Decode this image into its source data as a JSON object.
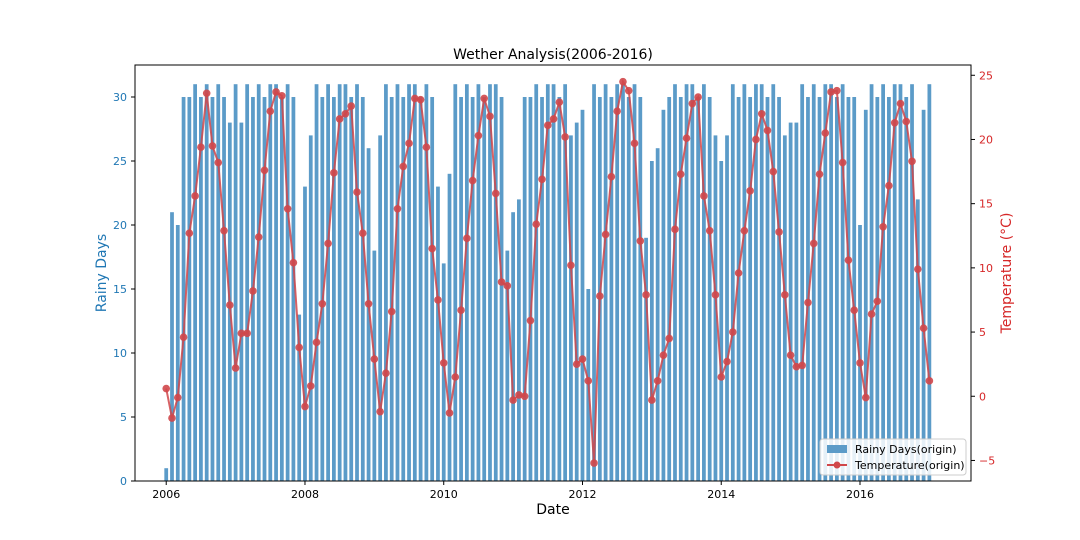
{
  "chart_data": {
    "type": "bar+line",
    "title": "Wether Analysis(2006-2016)",
    "xlabel": "Date",
    "ylabel_left": "Rainy Days",
    "ylabel_right": "Temperature (°C)",
    "x_ticks": [
      "2006",
      "2008",
      "2010",
      "2012",
      "2014",
      "2016"
    ],
    "y_left_ticks": [
      0,
      5,
      10,
      15,
      20,
      25,
      30
    ],
    "y_right_ticks": [
      -5,
      0,
      5,
      10,
      15,
      20,
      25
    ],
    "x_range_years": [
      2005.55,
      2017.6
    ],
    "y_left_range": [
      0,
      32.5
    ],
    "y_right_range": [
      -6.6,
      25.8
    ],
    "grid": false,
    "legend_position": "bottom-right",
    "colors": {
      "bars": "#5b9bc8",
      "line": "#d0474a",
      "left_axis_text": "#1f77b4",
      "right_axis_text": "#d62728"
    },
    "x_start": "2006-01",
    "series": [
      {
        "name": "Rainy Days(origin)",
        "type": "bar",
        "values": [
          1,
          21,
          20,
          30,
          30,
          31,
          30,
          31,
          30,
          31,
          30,
          28,
          31,
          28,
          31,
          30,
          31,
          30,
          31,
          31,
          30,
          31,
          30,
          13,
          23,
          27,
          31,
          30,
          31,
          30,
          31,
          31,
          30,
          31,
          30,
          26,
          18,
          27,
          31,
          30,
          31,
          30,
          31,
          31,
          30,
          31,
          30,
          23,
          17,
          24,
          31,
          30,
          31,
          30,
          31,
          30,
          31,
          31,
          30,
          18,
          21,
          22,
          30,
          30,
          31,
          30,
          31,
          31,
          30,
          31,
          27,
          28,
          29,
          15,
          31,
          30,
          31,
          30,
          31,
          31,
          30,
          31,
          30,
          19,
          25,
          26,
          29,
          30,
          31,
          30,
          31,
          31,
          30,
          31,
          30,
          27,
          25,
          27,
          31,
          30,
          31,
          30,
          31,
          31,
          30,
          31,
          30,
          27,
          28,
          28,
          31,
          30,
          31,
          30,
          31,
          31,
          30,
          31,
          30,
          30,
          20,
          29,
          31,
          30,
          31,
          30,
          31,
          31,
          30,
          31,
          22,
          29,
          31
        ]
      },
      {
        "name": "Temperature(origin)",
        "type": "line",
        "values": [
          0.6,
          -1.7,
          -0.1,
          4.6,
          12.7,
          15.6,
          19.4,
          23.6,
          19.5,
          18.2,
          12.9,
          7.1,
          2.2,
          4.9,
          4.9,
          8.2,
          12.4,
          17.6,
          22.2,
          23.7,
          23.4,
          14.6,
          10.4,
          3.8,
          -0.8,
          0.8,
          4.2,
          7.2,
          11.9,
          17.4,
          21.6,
          22.0,
          22.6,
          15.9,
          12.7,
          7.2,
          2.9,
          -1.2,
          1.8,
          6.6,
          14.6,
          17.9,
          19.7,
          23.2,
          23.1,
          19.4,
          11.5,
          7.5,
          2.6,
          -1.3,
          1.5,
          6.7,
          12.3,
          16.8,
          20.3,
          23.2,
          21.8,
          15.8,
          8.9,
          8.6,
          -0.3,
          0.1,
          0.0,
          5.9,
          13.4,
          16.9,
          21.1,
          21.6,
          22.9,
          20.2,
          10.2,
          2.5,
          2.9,
          1.2,
          -5.2,
          7.8,
          12.6,
          17.1,
          22.2,
          24.5,
          23.8,
          19.7,
          12.1,
          7.9,
          -0.3,
          1.2,
          3.2,
          4.5,
          13.0,
          17.3,
          20.1,
          22.8,
          23.3,
          15.6,
          12.9,
          7.9,
          1.5,
          2.7,
          5.0,
          9.6,
          12.9,
          16.0,
          20.0,
          22.0,
          20.7,
          17.5,
          12.8,
          7.9,
          3.2,
          2.3,
          2.4,
          7.3,
          11.9,
          17.3,
          20.5,
          23.7,
          23.8,
          18.2,
          10.6,
          6.7,
          2.6,
          -0.1,
          6.4,
          7.4,
          13.2,
          16.4,
          21.3,
          22.8,
          21.4,
          18.3,
          9.9,
          5.3,
          1.2
        ]
      }
    ]
  }
}
